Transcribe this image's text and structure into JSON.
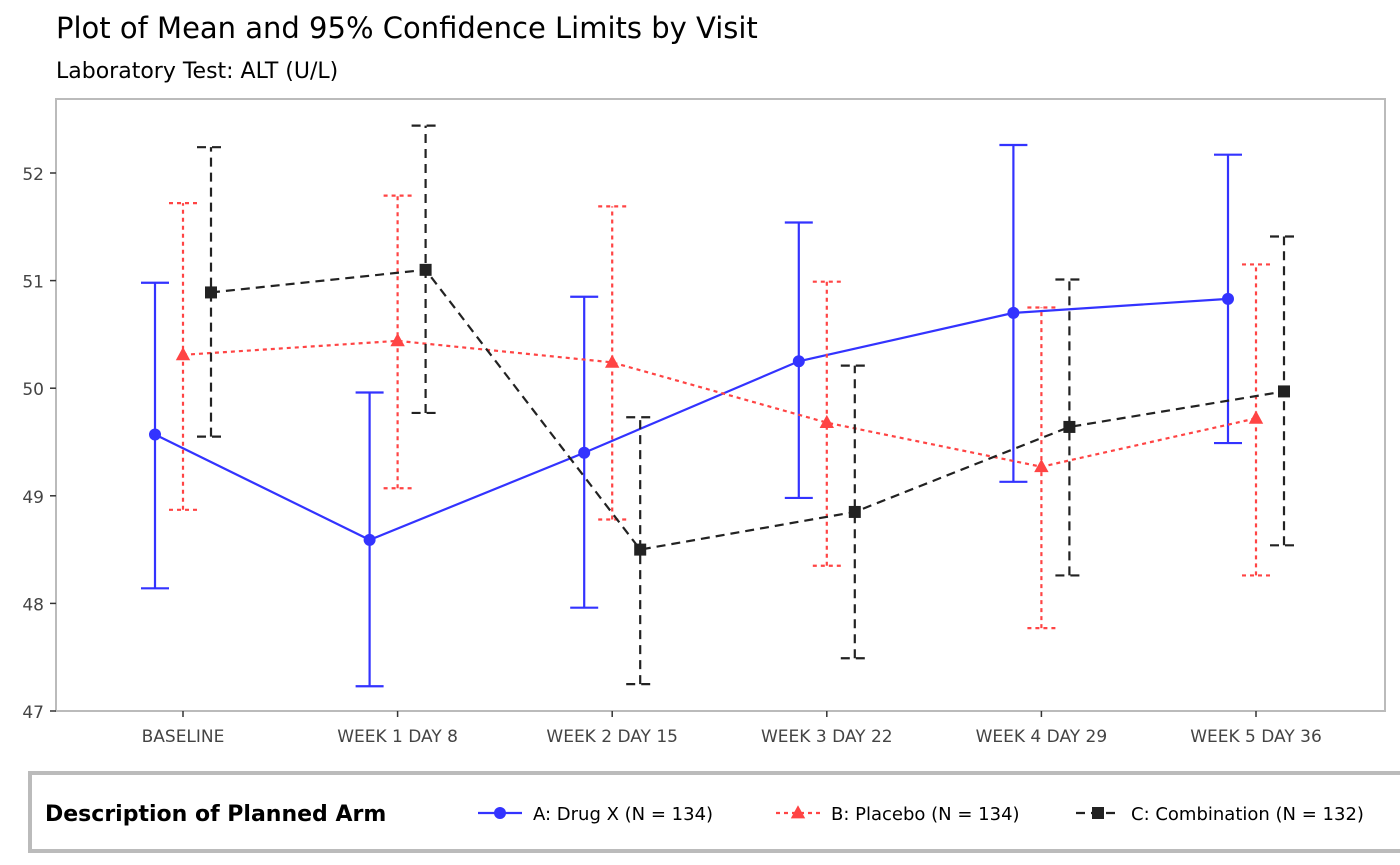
{
  "chart_data": {
    "type": "line",
    "title": "Plot of Mean and 95% Confidence Limits by Visit",
    "subtitle": "Laboratory Test: ALT (U/L)",
    "xlabel": "",
    "ylabel": "",
    "categories": [
      "BASELINE",
      "WEEK 1 DAY 8",
      "WEEK 2 DAY 15",
      "WEEK 3 DAY 22",
      "WEEK 4 DAY 29",
      "WEEK 5 DAY 36"
    ],
    "ylim": [
      47,
      52.5
    ],
    "yticks": [
      47,
      48,
      49,
      50,
      51,
      52
    ],
    "grid": false,
    "legend": {
      "title": "Description of Planned Arm",
      "placement": "bottom"
    },
    "series": [
      {
        "name": "A: Drug X (N = 134)",
        "color": "#3333FF",
        "marker": "circle",
        "line": "solid",
        "mean": [
          49.57,
          48.59,
          49.4,
          50.25,
          50.7,
          50.83
        ],
        "lower": [
          48.14,
          47.23,
          47.96,
          48.98,
          49.13,
          49.49
        ],
        "upper": [
          50.98,
          49.96,
          50.85,
          51.54,
          52.26,
          52.17
        ]
      },
      {
        "name": "B: Placebo (N = 134)",
        "color": "#FF4444",
        "marker": "triangle",
        "line": "dotted",
        "mean": [
          50.31,
          50.44,
          50.24,
          49.68,
          49.27,
          49.72
        ],
        "lower": [
          48.87,
          49.07,
          48.78,
          48.35,
          47.77,
          48.26
        ],
        "upper": [
          51.72,
          51.79,
          51.69,
          50.99,
          50.75,
          51.15
        ]
      },
      {
        "name": "C: Combination (N = 132)",
        "color": "#222222",
        "marker": "square",
        "line": "dashed",
        "mean": [
          50.89,
          51.1,
          48.5,
          48.85,
          49.64,
          49.97
        ],
        "lower": [
          49.55,
          49.77,
          47.25,
          47.49,
          48.26,
          48.54
        ],
        "upper": [
          52.24,
          52.44,
          49.73,
          50.21,
          51.01,
          51.41
        ]
      }
    ]
  }
}
